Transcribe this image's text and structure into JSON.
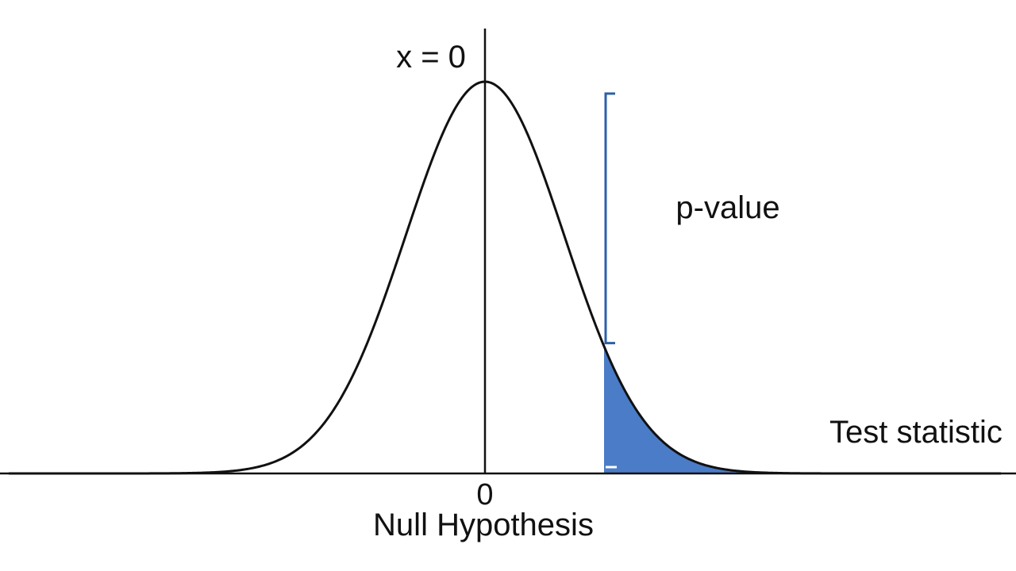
{
  "diagram": {
    "top_label": "x = 0",
    "pvalue_label": "p-value",
    "statistic_label": "Test statistic",
    "tick_label": "0",
    "axis_caption": "Null Hypothesis",
    "test_statistic_value": 1.5,
    "x_range": [
      -6,
      6.5
    ]
  },
  "colors": {
    "curve": "#111111",
    "axis": "#111111",
    "tail_fill": "#4a7cc7",
    "bracket": "#2e5fa8",
    "text": "#111111"
  }
}
